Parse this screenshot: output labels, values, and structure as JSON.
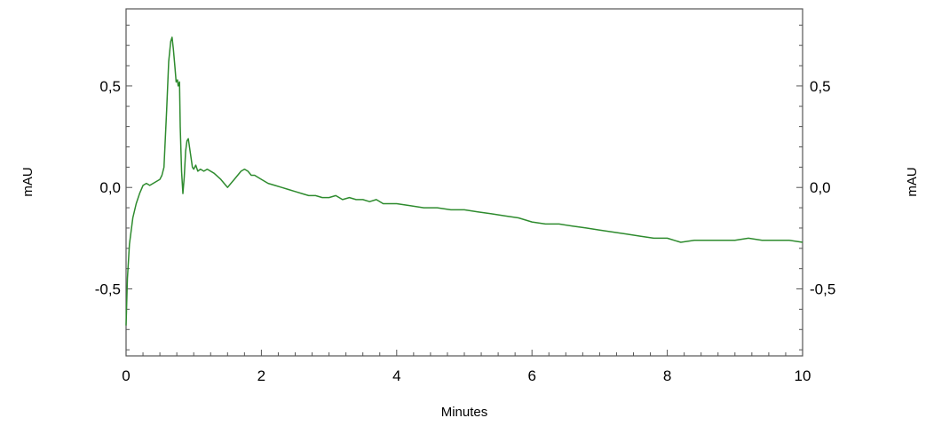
{
  "chart_data": {
    "type": "line",
    "title": "",
    "xlabel": "Minutes",
    "ylabel": "mAU",
    "ylabel_right": "mAU",
    "xlim": [
      0,
      10
    ],
    "ylim": [
      -0.83,
      0.88
    ],
    "grid": false,
    "legend": "none",
    "x_ticks": [
      {
        "value": 0,
        "label": "0"
      },
      {
        "value": 2,
        "label": "2"
      },
      {
        "value": 4,
        "label": "4"
      },
      {
        "value": 6,
        "label": "6"
      },
      {
        "value": 8,
        "label": "8"
      },
      {
        "value": 10,
        "label": "10"
      }
    ],
    "y_ticks": [
      {
        "value": 0.5,
        "label": "0,5"
      },
      {
        "value": 0.0,
        "label": "0,0"
      },
      {
        "value": -0.5,
        "label": "-0,5"
      }
    ],
    "series": [
      {
        "color": "#2e8b2e",
        "x": [
          0.0,
          0.02,
          0.05,
          0.1,
          0.15,
          0.2,
          0.25,
          0.3,
          0.35,
          0.4,
          0.45,
          0.5,
          0.53,
          0.56,
          0.6,
          0.63,
          0.66,
          0.68,
          0.7,
          0.72,
          0.74,
          0.76,
          0.77,
          0.79,
          0.8,
          0.82,
          0.84,
          0.86,
          0.88,
          0.9,
          0.92,
          0.95,
          0.98,
          1.0,
          1.03,
          1.06,
          1.1,
          1.15,
          1.2,
          1.3,
          1.4,
          1.5,
          1.55,
          1.6,
          1.65,
          1.7,
          1.75,
          1.8,
          1.85,
          1.9,
          2.0,
          2.1,
          2.2,
          2.3,
          2.4,
          2.5,
          2.6,
          2.7,
          2.8,
          2.9,
          3.0,
          3.1,
          3.2,
          3.3,
          3.4,
          3.5,
          3.6,
          3.7,
          3.8,
          3.9,
          4.0,
          4.2,
          4.4,
          4.6,
          4.8,
          5.0,
          5.2,
          5.4,
          5.6,
          5.8,
          6.0,
          6.2,
          6.4,
          6.6,
          6.8,
          7.0,
          7.2,
          7.4,
          7.6,
          7.8,
          8.0,
          8.2,
          8.4,
          8.6,
          8.8,
          9.0,
          9.2,
          9.4,
          9.6,
          9.8,
          10.0
        ],
        "y": [
          -0.68,
          -0.45,
          -0.28,
          -0.15,
          -0.08,
          -0.03,
          0.01,
          0.02,
          0.01,
          0.02,
          0.03,
          0.04,
          0.06,
          0.1,
          0.38,
          0.62,
          0.72,
          0.74,
          0.68,
          0.6,
          0.52,
          0.53,
          0.5,
          0.52,
          0.3,
          0.08,
          -0.03,
          0.05,
          0.18,
          0.23,
          0.24,
          0.17,
          0.1,
          0.09,
          0.11,
          0.08,
          0.09,
          0.08,
          0.09,
          0.07,
          0.04,
          0.0,
          0.02,
          0.04,
          0.06,
          0.08,
          0.09,
          0.08,
          0.06,
          0.06,
          0.04,
          0.02,
          0.01,
          0.0,
          -0.01,
          -0.02,
          -0.03,
          -0.04,
          -0.04,
          -0.05,
          -0.05,
          -0.04,
          -0.06,
          -0.05,
          -0.06,
          -0.06,
          -0.07,
          -0.06,
          -0.08,
          -0.08,
          -0.08,
          -0.09,
          -0.1,
          -0.1,
          -0.11,
          -0.11,
          -0.12,
          -0.13,
          -0.14,
          -0.15,
          -0.17,
          -0.18,
          -0.18,
          -0.19,
          -0.2,
          -0.21,
          -0.22,
          -0.23,
          -0.24,
          -0.25,
          -0.25,
          -0.27,
          -0.26,
          -0.26,
          -0.26,
          -0.26,
          -0.25,
          -0.26,
          -0.26,
          -0.26,
          -0.27
        ]
      }
    ]
  }
}
